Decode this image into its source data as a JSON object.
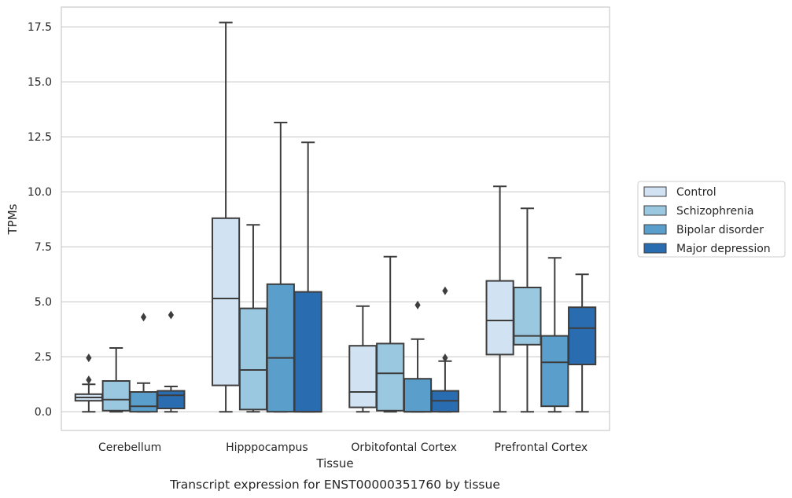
{
  "chart_data": {
    "type": "box",
    "xlabel": "Tissue",
    "ylabel": "TPMs",
    "caption": "Transcript expression for ENST00000351760 by tissue",
    "ylim": [
      -0.85,
      18.4
    ],
    "yticks": [
      0.0,
      2.5,
      5.0,
      7.5,
      10.0,
      12.5,
      15.0,
      17.5
    ],
    "ytick_labels": [
      "0.0",
      "2.5",
      "5.0",
      "7.5",
      "10.0",
      "12.5",
      "15.0",
      "17.5"
    ],
    "grid": true,
    "legend_position": "right",
    "categories": [
      "Cerebellum",
      "Hipppocampus",
      "Orbitofontal Cortex",
      "Prefrontal Cortex"
    ],
    "series": [
      {
        "name": "Control",
        "color": "#d1e2f2",
        "boxes": [
          {
            "whislo": 0.0,
            "q1": 0.5,
            "med": 0.65,
            "q3": 0.8,
            "whishi": 1.25,
            "fliers": [
              1.45,
              2.45
            ]
          },
          {
            "whislo": 0.0,
            "q1": 1.2,
            "med": 5.15,
            "q3": 8.8,
            "whishi": 17.7,
            "fliers": []
          },
          {
            "whislo": 0.0,
            "q1": 0.2,
            "med": 0.9,
            "q3": 3.0,
            "whishi": 4.8,
            "fliers": []
          },
          {
            "whislo": 0.0,
            "q1": 2.6,
            "med": 4.15,
            "q3": 5.95,
            "whishi": 10.25,
            "fliers": []
          }
        ]
      },
      {
        "name": "Schizophrenia",
        "color": "#9ac8e0",
        "boxes": [
          {
            "whislo": 0.0,
            "q1": 0.05,
            "med": 0.55,
            "q3": 1.4,
            "whishi": 2.9,
            "fliers": []
          },
          {
            "whislo": 0.0,
            "q1": 0.1,
            "med": 1.9,
            "q3": 4.7,
            "whishi": 8.5,
            "fliers": []
          },
          {
            "whislo": 0.0,
            "q1": 0.05,
            "med": 1.75,
            "q3": 3.1,
            "whishi": 7.05,
            "fliers": []
          },
          {
            "whislo": 0.0,
            "q1": 3.05,
            "med": 3.45,
            "q3": 5.65,
            "whishi": 9.25,
            "fliers": []
          }
        ]
      },
      {
        "name": "Bipolar disorder",
        "color": "#5a9fcc",
        "boxes": [
          {
            "whislo": 0.0,
            "q1": 0.0,
            "med": 0.25,
            "q3": 0.9,
            "whishi": 1.3,
            "fliers": [
              4.3
            ]
          },
          {
            "whislo": 0.0,
            "q1": 0.0,
            "med": 2.45,
            "q3": 5.8,
            "whishi": 13.15,
            "fliers": []
          },
          {
            "whislo": 0.0,
            "q1": 0.0,
            "med": 0.0,
            "q3": 1.5,
            "whishi": 3.3,
            "fliers": [
              4.85
            ]
          },
          {
            "whislo": 0.0,
            "q1": 0.25,
            "med": 2.25,
            "q3": 3.45,
            "whishi": 7.0,
            "fliers": []
          }
        ]
      },
      {
        "name": "Major depression",
        "color": "#2a6cb0",
        "boxes": [
          {
            "whislo": 0.0,
            "q1": 0.15,
            "med": 0.75,
            "q3": 0.95,
            "whishi": 1.15,
            "fliers": [
              4.4
            ]
          },
          {
            "whislo": 0.0,
            "q1": 0.0,
            "med": 0.0,
            "q3": 5.45,
            "whishi": 12.25,
            "fliers": []
          },
          {
            "whislo": 0.0,
            "q1": 0.0,
            "med": 0.5,
            "q3": 0.95,
            "whishi": 2.3,
            "fliers": [
              2.45,
              5.5
            ]
          },
          {
            "whislo": 0.0,
            "q1": 2.15,
            "med": 3.8,
            "q3": 4.75,
            "whishi": 6.25,
            "fliers": []
          }
        ]
      }
    ]
  }
}
